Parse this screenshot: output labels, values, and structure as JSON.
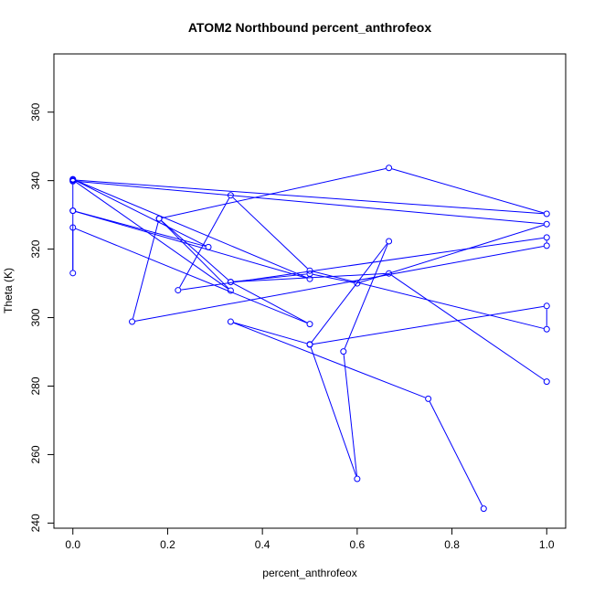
{
  "chart_data": {
    "type": "line",
    "title": "ATOM2 Northbound percent_anthrofeox",
    "xlabel": "percent_anthrofeox",
    "ylabel": "Theta (K)",
    "xlim": [
      -0.04,
      1.04
    ],
    "ylim": [
      238.5,
      377
    ],
    "xticks": [
      0.0,
      0.2,
      0.4,
      0.6,
      0.8,
      1.0
    ],
    "xtick_labels": [
      "0.0",
      "0.2",
      "0.4",
      "0.6",
      "0.8",
      "1.0"
    ],
    "yticks": [
      240,
      260,
      280,
      300,
      320,
      340,
      360
    ],
    "ytick_labels": [
      "240",
      "260",
      "280",
      "300",
      "320",
      "340",
      "360"
    ],
    "series": [
      {
        "color": "#0000ff",
        "marker": "open-circle",
        "x": [
          0.867,
          0.75,
          0.333,
          0.5,
          0.6,
          0.571,
          0.667,
          0.5,
          1.0,
          1.0,
          0.5,
          0.333,
          0.222,
          1.0,
          1.0,
          0.125,
          0.182,
          0.333,
          0.5,
          0.0,
          0.0,
          0.0,
          0.286,
          0.0,
          0.5,
          0.0,
          0.0,
          0.0,
          1.0,
          0.667,
          0.182,
          0.333,
          0.0,
          0.0,
          1.0,
          0.6,
          0.5,
          0.333,
          0.667,
          1.0
        ],
        "y": [
          244.2,
          276.3,
          298.8,
          292.2,
          252.9,
          290.1,
          322.3,
          292.1,
          303.4,
          296.6,
          313.7,
          335.7,
          308.0,
          323.4,
          321.0,
          298.8,
          328.9,
          310.4,
          298.1,
          326.3,
          313.0,
          331.2,
          320.6,
          340.4,
          311.3,
          331.2,
          339.8,
          340.2,
          330.3,
          343.7,
          328.9,
          307.9,
          340.2,
          339.9,
          327.3,
          310.0,
          312.8,
          310.4,
          312.9,
          281.3
        ]
      }
    ]
  }
}
